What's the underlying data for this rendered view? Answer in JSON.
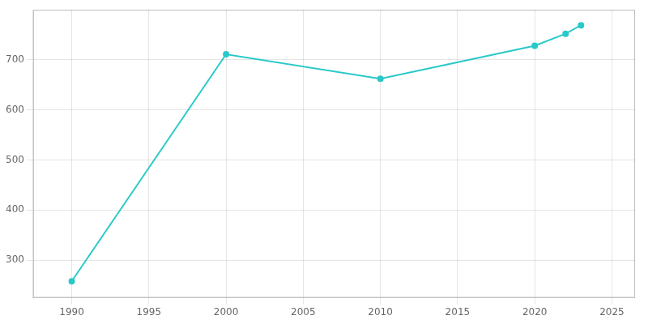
{
  "chart_data": {
    "type": "line",
    "x": [
      1990,
      2000,
      2010,
      2020,
      2022,
      2023
    ],
    "values": [
      258,
      711,
      662,
      728,
      752,
      769
    ],
    "color": "#29C9C9",
    "marker": "circle",
    "xlim": [
      1987.5,
      2026.5
    ],
    "xticks": [
      1990,
      1995,
      2000,
      2005,
      2010,
      2015,
      2020,
      2025
    ],
    "ylim": [
      225,
      800
    ],
    "yticks": [
      300,
      400,
      500,
      600,
      700
    ],
    "grid": true
  }
}
